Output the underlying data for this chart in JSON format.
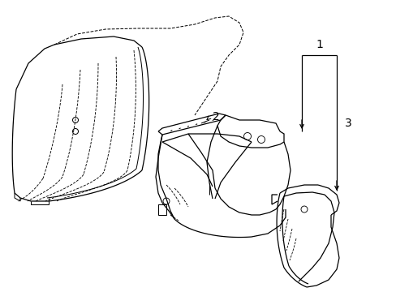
{
  "background": "#ffffff",
  "line_color": "#000000",
  "line_width": 0.9,
  "label_fontsize": 9
}
